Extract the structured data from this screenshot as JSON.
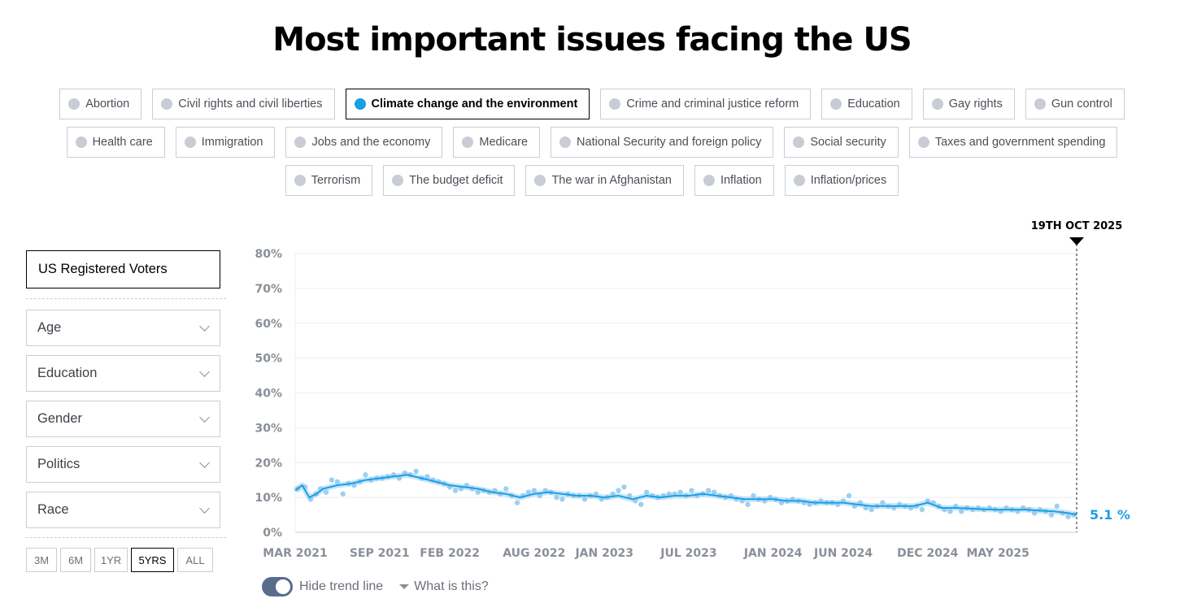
{
  "page_title": "Most important issues facing the US",
  "issues": {
    "rows": [
      [
        {
          "label": "Abortion",
          "active": false
        },
        {
          "label": "Civil rights and civil liberties",
          "active": false
        },
        {
          "label": "Climate change and the environment",
          "active": true
        },
        {
          "label": "Crime and criminal justice reform",
          "active": false
        },
        {
          "label": "Education",
          "active": false
        },
        {
          "label": "Gay rights",
          "active": false
        },
        {
          "label": "Gun control",
          "active": false
        }
      ],
      [
        {
          "label": "Health care",
          "active": false
        },
        {
          "label": "Immigration",
          "active": false
        },
        {
          "label": "Jobs and the economy",
          "active": false
        },
        {
          "label": "Medicare",
          "active": false
        },
        {
          "label": "National Security and foreign policy",
          "active": false
        },
        {
          "label": "Social security",
          "active": false
        },
        {
          "label": "Taxes and government spending",
          "active": false
        }
      ],
      [
        {
          "label": "Terrorism",
          "active": false
        },
        {
          "label": "The budget deficit",
          "active": false
        },
        {
          "label": "The war in Afghanistan",
          "active": false
        },
        {
          "label": "Inflation",
          "active": false
        },
        {
          "label": "Inflation/prices",
          "active": false
        }
      ]
    ]
  },
  "sidebar": {
    "population": "US Registered Voters",
    "filters": [
      "Age",
      "Education",
      "Gender",
      "Politics",
      "Race"
    ],
    "ranges": [
      {
        "label": "3M",
        "active": false
      },
      {
        "label": "6M",
        "active": false
      },
      {
        "label": "1YR",
        "active": false
      },
      {
        "label": "5YRS",
        "active": true
      },
      {
        "label": "ALL",
        "active": false
      }
    ]
  },
  "controls": {
    "toggle_label": "Hide trend line",
    "help_label": "What is this?"
  },
  "colors": {
    "accent": "#1a9ee6",
    "point": "#8cc8ef",
    "grid": "#eeeff2",
    "axis": "#c9ced6"
  },
  "chart_data": {
    "type": "line",
    "title": "Most important issues facing the US",
    "series_name": "Climate change and the environment",
    "ylabel": "",
    "xlabel": "",
    "ylim": [
      0,
      80
    ],
    "yticks": [
      "0%",
      "10%",
      "20%",
      "30%",
      "40%",
      "50%",
      "60%",
      "70%",
      "80%"
    ],
    "x_range": [
      "2021-03",
      "2025-10-19"
    ],
    "x_start_month": 0,
    "x_end_month": 55.6,
    "xticks": [
      {
        "label": "MAR 2021",
        "month": 0
      },
      {
        "label": "SEP 2021",
        "month": 6
      },
      {
        "label": "FEB 2022",
        "month": 11
      },
      {
        "label": "AUG 2022",
        "month": 17
      },
      {
        "label": "JAN 2023",
        "month": 22
      },
      {
        "label": "JUL 2023",
        "month": 28
      },
      {
        "label": "JAN 2024",
        "month": 34
      },
      {
        "label": "JUN 2024",
        "month": 39
      },
      {
        "label": "DEC 2024",
        "month": 45
      },
      {
        "label": "MAY 2025",
        "month": 50
      }
    ],
    "marker_label": "19TH OCT 2025",
    "last_value_label": "5.1 %",
    "last_value": 5.1,
    "trend": [
      [
        0,
        12
      ],
      [
        0.5,
        13.5
      ],
      [
        1,
        10
      ],
      [
        1.5,
        11
      ],
      [
        2,
        12.5
      ],
      [
        3,
        13.5
      ],
      [
        4,
        14
      ],
      [
        5,
        15
      ],
      [
        6,
        15.5
      ],
      [
        7,
        16
      ],
      [
        8,
        16.5
      ],
      [
        9,
        15.5
      ],
      [
        10,
        14.5
      ],
      [
        11,
        13.5
      ],
      [
        12,
        13
      ],
      [
        13,
        12.5
      ],
      [
        14,
        11.5
      ],
      [
        15,
        11
      ],
      [
        16,
        10
      ],
      [
        17,
        11
      ],
      [
        18,
        11.5
      ],
      [
        19,
        11
      ],
      [
        20,
        10.5
      ],
      [
        21,
        10.5
      ],
      [
        22,
        10
      ],
      [
        23,
        10.5
      ],
      [
        24,
        9.5
      ],
      [
        25,
        10.5
      ],
      [
        26,
        10
      ],
      [
        27,
        10.5
      ],
      [
        28,
        10.5
      ],
      [
        29,
        11
      ],
      [
        30,
        10.5
      ],
      [
        31,
        10
      ],
      [
        32,
        9.5
      ],
      [
        33,
        9.5
      ],
      [
        34,
        9.5
      ],
      [
        35,
        9
      ],
      [
        36,
        9
      ],
      [
        37,
        8.5
      ],
      [
        38,
        8.5
      ],
      [
        39,
        8.5
      ],
      [
        40,
        8
      ],
      [
        41,
        7.5
      ],
      [
        42,
        7.5
      ],
      [
        43,
        7.5
      ],
      [
        44,
        7.5
      ],
      [
        45,
        8.5
      ],
      [
        46,
        7
      ],
      [
        47,
        7
      ],
      [
        48,
        6.8
      ],
      [
        49,
        6.6
      ],
      [
        50,
        6.5
      ],
      [
        51,
        6.5
      ],
      [
        52,
        6.5
      ],
      [
        53,
        6.2
      ],
      [
        54,
        6
      ],
      [
        55,
        5.5
      ],
      [
        55.6,
        5.1
      ]
    ],
    "points": [
      [
        0.2,
        12.5
      ],
      [
        0.7,
        13
      ],
      [
        1.1,
        9.5
      ],
      [
        1.5,
        11
      ],
      [
        1.8,
        12.5
      ],
      [
        2.2,
        11.5
      ],
      [
        2.6,
        15
      ],
      [
        3,
        14.5
      ],
      [
        3.4,
        11
      ],
      [
        3.8,
        14
      ],
      [
        4.2,
        13.5
      ],
      [
        4.6,
        14.5
      ],
      [
        5,
        16.5
      ],
      [
        5.4,
        15
      ],
      [
        5.8,
        15.5
      ],
      [
        6.2,
        15.5
      ],
      [
        6.6,
        16
      ],
      [
        7,
        16.5
      ],
      [
        7.4,
        15.5
      ],
      [
        7.8,
        17
      ],
      [
        8.2,
        16.5
      ],
      [
        8.6,
        17.5
      ],
      [
        9,
        15.5
      ],
      [
        9.4,
        16
      ],
      [
        9.8,
        15
      ],
      [
        10.2,
        14.5
      ],
      [
        10.6,
        14
      ],
      [
        11,
        13
      ],
      [
        11.4,
        12
      ],
      [
        11.8,
        12.5
      ],
      [
        12.2,
        13.5
      ],
      [
        12.6,
        12.5
      ],
      [
        13,
        11.5
      ],
      [
        13.4,
        12
      ],
      [
        13.8,
        11.5
      ],
      [
        14.2,
        12
      ],
      [
        14.6,
        11
      ],
      [
        15,
        12.5
      ],
      [
        15.4,
        10.5
      ],
      [
        15.8,
        8.5
      ],
      [
        16.2,
        10.5
      ],
      [
        16.6,
        11.5
      ],
      [
        17,
        12
      ],
      [
        17.4,
        10.5
      ],
      [
        17.8,
        12
      ],
      [
        18.2,
        11.5
      ],
      [
        18.6,
        10
      ],
      [
        19,
        9.5
      ],
      [
        19.4,
        11
      ],
      [
        19.8,
        10.5
      ],
      [
        20.2,
        10.5
      ],
      [
        20.6,
        9.5
      ],
      [
        21,
        10.5
      ],
      [
        21.4,
        11
      ],
      [
        21.8,
        9.5
      ],
      [
        22.2,
        10
      ],
      [
        22.6,
        11
      ],
      [
        23,
        12
      ],
      [
        23.4,
        13
      ],
      [
        23.8,
        10.5
      ],
      [
        24.2,
        9
      ],
      [
        24.6,
        8
      ],
      [
        25,
        11.5
      ],
      [
        25.4,
        10.5
      ],
      [
        25.8,
        10
      ],
      [
        26.2,
        10.5
      ],
      [
        26.6,
        11
      ],
      [
        27,
        11
      ],
      [
        27.4,
        11.5
      ],
      [
        27.8,
        10.5
      ],
      [
        28.2,
        12
      ],
      [
        28.6,
        10.5
      ],
      [
        29,
        11
      ],
      [
        29.4,
        12
      ],
      [
        29.8,
        11.5
      ],
      [
        30.2,
        10.5
      ],
      [
        30.6,
        10
      ],
      [
        31,
        10.5
      ],
      [
        31.4,
        9.5
      ],
      [
        31.8,
        9
      ],
      [
        32.2,
        8
      ],
      [
        32.6,
        10.5
      ],
      [
        33,
        9.5
      ],
      [
        33.4,
        9
      ],
      [
        33.8,
        10
      ],
      [
        34.2,
        9.5
      ],
      [
        34.6,
        8.5
      ],
      [
        35,
        9
      ],
      [
        35.4,
        9.5
      ],
      [
        35.8,
        9
      ],
      [
        36.2,
        8.5
      ],
      [
        36.6,
        8
      ],
      [
        37,
        8.5
      ],
      [
        37.4,
        9
      ],
      [
        37.8,
        8.5
      ],
      [
        38.2,
        8.5
      ],
      [
        38.6,
        8
      ],
      [
        39,
        9
      ],
      [
        39.4,
        10.5
      ],
      [
        39.8,
        7.5
      ],
      [
        40.2,
        8.5
      ],
      [
        40.6,
        7
      ],
      [
        41,
        6.5
      ],
      [
        41.4,
        7.5
      ],
      [
        41.8,
        8.5
      ],
      [
        42.2,
        7.5
      ],
      [
        42.6,
        7
      ],
      [
        43,
        8
      ],
      [
        43.4,
        7.5
      ],
      [
        43.8,
        7
      ],
      [
        44.2,
        7.5
      ],
      [
        44.6,
        6.5
      ],
      [
        45,
        9
      ],
      [
        45.4,
        8.5
      ],
      [
        45.8,
        7.5
      ],
      [
        46.2,
        6.5
      ],
      [
        46.6,
        6
      ],
      [
        47,
        7.5
      ],
      [
        47.4,
        6
      ],
      [
        47.8,
        7
      ],
      [
        48.2,
        6.5
      ],
      [
        48.6,
        7
      ],
      [
        49,
        6.5
      ],
      [
        49.4,
        7
      ],
      [
        49.8,
        6.5
      ],
      [
        50.2,
        6
      ],
      [
        50.6,
        7
      ],
      [
        51,
        6.5
      ],
      [
        51.4,
        6
      ],
      [
        51.8,
        7
      ],
      [
        52.2,
        6.5
      ],
      [
        52.6,
        5.5
      ],
      [
        53,
        6.5
      ],
      [
        53.4,
        6
      ],
      [
        53.8,
        5
      ],
      [
        54.2,
        7.5
      ],
      [
        54.6,
        5.5
      ],
      [
        55,
        4.5
      ],
      [
        55.4,
        5
      ]
    ]
  }
}
